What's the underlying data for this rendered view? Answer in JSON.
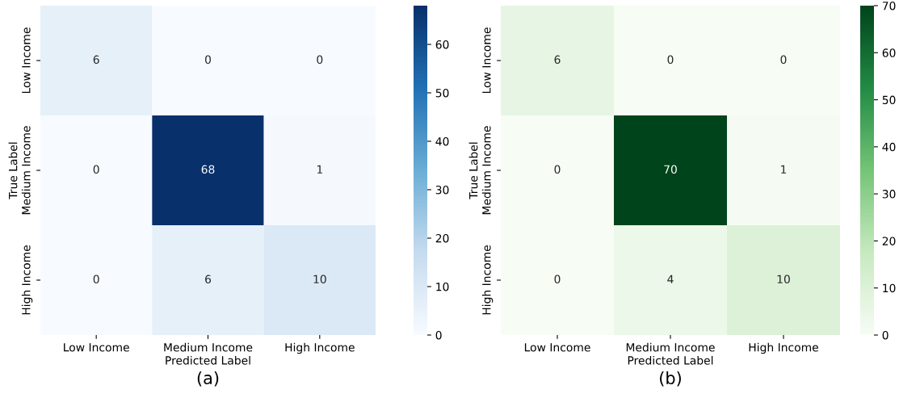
{
  "chart_data": [
    {
      "type": "heatmap",
      "xlabel": "Predicted Label",
      "ylabel": "True Label",
      "annotations": [
        "(a)"
      ],
      "categories": [
        "Low Income",
        "Medium Income",
        "High Income"
      ],
      "y_categories": [
        "Low Income",
        "Medium Income",
        "High Income"
      ],
      "cells": [
        [
          6,
          0,
          0
        ],
        [
          0,
          68,
          1
        ],
        [
          0,
          6,
          10
        ]
      ],
      "clim": [
        0,
        68
      ],
      "cticks": [
        0,
        10,
        20,
        30,
        40,
        50,
        60
      ],
      "colors": [
        "#f7fbff",
        "#c6dbef",
        "#6baed6",
        "#2171b5",
        "#08306b"
      ],
      "data_labels": true
    },
    {
      "type": "heatmap",
      "xlabel": "Predicted Label",
      "ylabel": "True Label",
      "annotations": [
        "(b)"
      ],
      "categories": [
        "Low Income",
        "Medium Income",
        "High Income"
      ],
      "y_categories": [
        "Low Income",
        "Medium Income",
        "High Income"
      ],
      "cells": [
        [
          6,
          0,
          0
        ],
        [
          0,
          70,
          1
        ],
        [
          0,
          4,
          10
        ]
      ],
      "clim": [
        0,
        70
      ],
      "cticks": [
        0,
        10,
        20,
        30,
        40,
        50,
        60,
        70
      ],
      "colors": [
        "#f7fcf5",
        "#c7e9c0",
        "#74c476",
        "#238b45",
        "#00441b"
      ],
      "data_labels": true
    }
  ]
}
